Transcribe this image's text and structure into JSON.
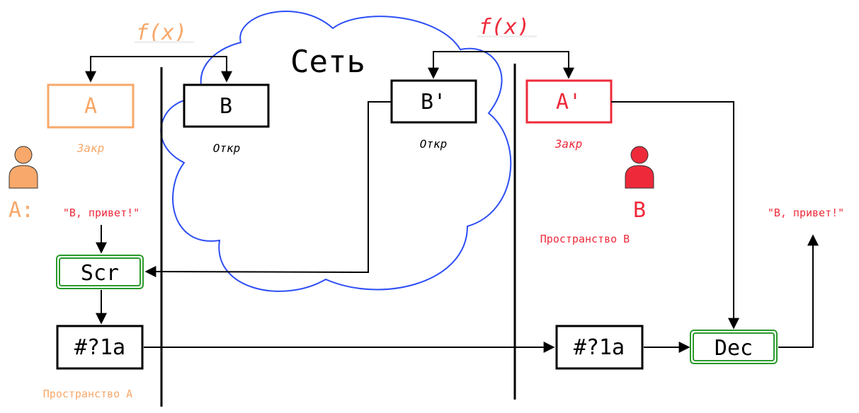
{
  "colors": {
    "userA": "#f7a86a",
    "userB": "#ee2a3a",
    "cloud": "#2d4ef5",
    "green": "#2a9a2a",
    "ink": "#000000"
  },
  "cloud": {
    "label": "Сеть"
  },
  "functions": {
    "left": "f(x)",
    "right": "f(x)"
  },
  "keys": {
    "A": {
      "label": "A",
      "caption": "Закр"
    },
    "B": {
      "label": "B",
      "caption": "Откр"
    },
    "Bprime": {
      "label": "B'",
      "caption": "Откр"
    },
    "Aprime": {
      "label": "A'",
      "caption": "Закр"
    }
  },
  "users": {
    "A": {
      "label": "A:",
      "icon": "person-icon"
    },
    "B": {
      "label": "B",
      "icon": "person-icon"
    }
  },
  "messages": {
    "left": "\"B, привет!\"",
    "right": "\"B, привет!\""
  },
  "ops": {
    "scr": "Scr",
    "dec": "Dec",
    "cipherLeft": "#?1a",
    "cipherRight": "#?1a"
  },
  "spaces": {
    "A": "Пространство А",
    "B": "Пространство В"
  }
}
